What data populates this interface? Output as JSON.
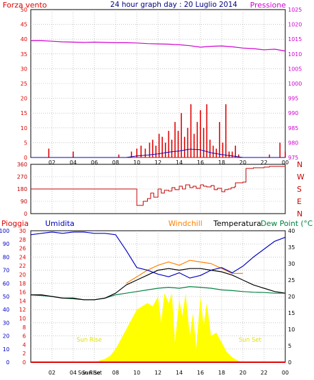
{
  "title": "24 hour graph day : 20 Luglio 2014",
  "colors": {
    "bg": "#ffffff",
    "frame": "#000000",
    "grid": "#a0a0a0",
    "wind": "#e00000",
    "gust": "#0000c0",
    "gust2": "#008000",
    "pressure": "#d000d0",
    "dir": "#c00000",
    "rain": "#e00000",
    "humidity": "#0000c0",
    "windchill": "#ff8000",
    "temperature": "#000000",
    "dewpoint": "#008040",
    "solar": "#ffff00",
    "solar_text": "#e0e000",
    "title": "#000080"
  },
  "x_ticks": [
    "02",
    "04",
    "06",
    "08",
    "10",
    "12",
    "14",
    "16",
    "18",
    "20",
    "22",
    "00"
  ],
  "panel1": {
    "left_label": "Forza vento",
    "right_label": "Pressione",
    "left_ticks": [
      "50",
      "45",
      "40",
      "35",
      "30",
      "25",
      "20",
      "15",
      "10",
      "5",
      "0"
    ],
    "right_ticks": [
      "1025",
      "1020",
      "1015",
      "1010",
      "1005",
      "1000",
      "995",
      "990",
      "985",
      "980",
      "975"
    ]
  },
  "panel2": {
    "left_ticks": [
      "360",
      "270",
      "180",
      "90",
      "0"
    ],
    "right_ticks": [
      "N",
      "W",
      "S",
      "E",
      "N"
    ]
  },
  "panel3": {
    "labels": {
      "pioggia": "Pioggia",
      "umidita": "Umidita",
      "windchill": "Windchill",
      "temperatura": "Temperatura",
      "dewpoint": "Dew Point (°C"
    },
    "humidity_ticks": [
      "100",
      "90",
      "80",
      "70",
      "60",
      "50",
      "40",
      "30",
      "20",
      "10",
      "0"
    ],
    "rain_ticks": [
      "30",
      "28",
      "26",
      "24",
      "22",
      "20",
      "18",
      "16",
      "14",
      "12",
      "10",
      "8",
      "6",
      "4",
      "2",
      "0"
    ],
    "temp_ticks": [
      "40",
      "35",
      "30",
      "25",
      "20",
      "15",
      "10",
      "5",
      "0"
    ],
    "sun_rise": "Sun Rise",
    "sun_set": "Sun Set",
    "sun_rise_tick": "Sun Rise",
    "sun_set_tick": "Sun Set"
  },
  "chart_data": [
    {
      "type": "line",
      "title": "24 hour graph day : 20 Luglio 2014",
      "ylabel": "Forza vento",
      "y2label": "Pressione",
      "ylim": [
        0,
        50
      ],
      "y2lim": [
        975,
        1025
      ],
      "xlim": [
        0,
        24
      ],
      "series": [
        {
          "name": "Pressione",
          "axis": "right",
          "x": [
            0,
            1,
            2,
            3,
            4,
            5,
            6,
            7,
            8,
            9,
            10,
            11,
            12,
            13,
            14,
            15,
            16,
            17,
            18,
            19,
            20,
            21,
            22,
            23,
            24
          ],
          "values": [
            1014.5,
            1014.5,
            1014.3,
            1014.1,
            1014.0,
            1013.9,
            1014.0,
            1013.9,
            1013.8,
            1013.8,
            1013.7,
            1013.5,
            1013.4,
            1013.3,
            1013.1,
            1012.8,
            1012.3,
            1012.6,
            1012.7,
            1012.4,
            1012.0,
            1011.8,
            1011.4,
            1011.6,
            1011.0
          ]
        },
        {
          "name": "Forza vento",
          "axis": "left",
          "x": [
            0.0,
            1.0,
            1.7,
            2.0,
            3.0,
            3.5,
            4.0,
            5.0,
            6.0,
            7.0,
            8.0,
            8.3,
            9.0,
            9.5,
            10.0,
            10.4,
            10.8,
            11.2,
            11.5,
            11.8,
            12.1,
            12.4,
            12.7,
            13.0,
            13.3,
            13.6,
            13.9,
            14.2,
            14.5,
            14.8,
            15.1,
            15.4,
            15.7,
            16.0,
            16.3,
            16.6,
            16.9,
            17.2,
            17.5,
            17.8,
            18.1,
            18.4,
            18.7,
            19.0,
            19.3,
            19.6,
            20.0,
            21.0,
            22.0,
            22.5,
            23.0,
            23.5,
            24.0
          ],
          "values": [
            0,
            0,
            3,
            0,
            0,
            0,
            2,
            0,
            0,
            0,
            0,
            1,
            0,
            2,
            3,
            4,
            3,
            5,
            6,
            4,
            8,
            7,
            5,
            9,
            6,
            12,
            9,
            15,
            7,
            10,
            18,
            8,
            12,
            16,
            10,
            18,
            6,
            4,
            3,
            12,
            5,
            18,
            2,
            2,
            4,
            1,
            0,
            0,
            0,
            1,
            0,
            5,
            2
          ]
        },
        {
          "name": "Raffica",
          "axis": "left",
          "x": [
            0,
            9,
            10,
            11,
            12,
            13,
            14,
            15,
            16,
            17,
            18,
            19,
            20,
            24
          ],
          "values": [
            0,
            0,
            0.5,
            0.8,
            1.2,
            1.8,
            2.2,
            2.8,
            2.6,
            1.6,
            1.0,
            0.5,
            0,
            0
          ]
        }
      ]
    },
    {
      "type": "line",
      "ylim": [
        0,
        360
      ],
      "xlim": [
        0,
        24
      ],
      "series": [
        {
          "name": "Direzione",
          "x": [
            0,
            9.0,
            9.5,
            10.0,
            10.3,
            10.6,
            11.0,
            11.3,
            11.6,
            12.0,
            12.3,
            12.6,
            13.0,
            13.3,
            13.6,
            14.0,
            14.3,
            14.6,
            15.0,
            15.3,
            15.6,
            16.0,
            16.3,
            16.6,
            17.0,
            17.3,
            17.6,
            18.0,
            18.3,
            18.6,
            18.9,
            19.2,
            19.3,
            19.6,
            20.0,
            20.3,
            21.0,
            22.0,
            22.5,
            23.0,
            24.0
          ],
          "values": [
            180,
            180,
            180,
            60,
            60,
            90,
            110,
            150,
            120,
            180,
            150,
            170,
            165,
            190,
            175,
            200,
            180,
            210,
            190,
            200,
            185,
            210,
            200,
            195,
            205,
            175,
            185,
            160,
            175,
            180,
            190,
            195,
            225,
            225,
            230,
            330,
            335,
            340,
            345,
            345,
            350
          ]
        }
      ]
    },
    {
      "type": "line",
      "xlim": [
        0,
        24
      ],
      "series": [
        {
          "name": "Umidita",
          "axis": "humidity",
          "x": [
            0,
            1,
            2,
            3,
            4,
            5,
            6,
            7,
            8,
            9,
            10,
            11,
            12,
            13,
            14,
            15,
            16,
            17,
            18,
            19,
            20,
            21,
            22,
            23,
            24
          ],
          "values": [
            97,
            98,
            99,
            98,
            99,
            99,
            98,
            98,
            97,
            85,
            72,
            70,
            67,
            65,
            68,
            64,
            66,
            70,
            72,
            68,
            73,
            80,
            86,
            92,
            95
          ]
        },
        {
          "name": "Windchill",
          "axis": "temp",
          "x": [
            9,
            10,
            11,
            12,
            13,
            14,
            15,
            16,
            17,
            18,
            19,
            20
          ],
          "values": [
            24,
            26,
            28,
            29.5,
            30.5,
            29.5,
            31,
            30.5,
            30,
            28.5,
            27,
            27
          ]
        },
        {
          "name": "Temperatura",
          "axis": "temp",
          "x": [
            0,
            1,
            2,
            3,
            4,
            5,
            6,
            7,
            8,
            9,
            10,
            11,
            12,
            13,
            14,
            15,
            16,
            17,
            18,
            19,
            20,
            21,
            22,
            23,
            24
          ],
          "values": [
            20.5,
            20.5,
            20,
            19.5,
            19.5,
            19,
            19,
            19.5,
            21,
            23.5,
            25,
            26.5,
            28,
            28.5,
            28,
            28.5,
            28.5,
            28,
            27.5,
            26.5,
            25,
            23.5,
            22.5,
            21.5,
            21
          ]
        },
        {
          "name": "Dew Point",
          "axis": "temp",
          "x": [
            0,
            1,
            2,
            3,
            4,
            5,
            6,
            7,
            8,
            9,
            10,
            11,
            12,
            13,
            14,
            15,
            16,
            17,
            18,
            19,
            20,
            21,
            22,
            23,
            24
          ],
          "values": [
            20.5,
            20.3,
            20,
            19.5,
            19.3,
            19,
            19,
            19.5,
            20.5,
            21,
            21.5,
            22,
            22.5,
            22.8,
            22.5,
            23,
            22.8,
            22.5,
            22,
            21.8,
            21.5,
            21.3,
            21.2,
            21,
            21
          ]
        },
        {
          "name": "Solar",
          "axis": "temp",
          "x": [
            0,
            6,
            6.5,
            7,
            7.5,
            8,
            8.5,
            9,
            9.5,
            10,
            10.5,
            11,
            11.5,
            12,
            12.3,
            12.6,
            13,
            13.3,
            13.6,
            14,
            14.3,
            14.6,
            15,
            15.3,
            15.6,
            16,
            16.3,
            16.6,
            17,
            17.5,
            18,
            18.5,
            19,
            19.5,
            20,
            24
          ],
          "values": [
            0,
            0,
            0.5,
            1,
            2,
            4,
            7,
            10,
            13,
            16,
            17,
            18,
            17,
            20,
            12,
            21,
            18,
            21,
            6,
            19,
            14,
            21,
            8,
            15,
            4,
            20,
            11,
            18,
            8,
            9,
            6,
            3,
            1.5,
            0.5,
            0,
            0
          ]
        },
        {
          "name": "Pioggia",
          "axis": "rain",
          "x": [
            0,
            24
          ],
          "values": [
            0,
            0
          ]
        }
      ]
    }
  ]
}
